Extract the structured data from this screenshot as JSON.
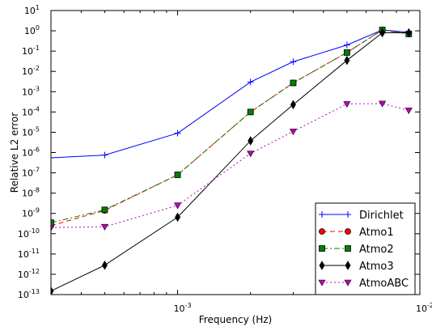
{
  "chart_data": {
    "type": "line",
    "xscale": "log",
    "yscale": "log",
    "xlabel": "Frequency (Hz)",
    "ylabel": "Relative L2 error",
    "xlim": [
      0.0003,
      0.01
    ],
    "ylim": [
      1e-13,
      10
    ],
    "legend_position": "bottom-right",
    "grid": false,
    "x_ticks": [
      {
        "value": 0.001,
        "base": "10",
        "exp": "-3"
      },
      {
        "value": 0.01,
        "base": "10",
        "exp": "-2"
      }
    ],
    "y_ticks": [
      {
        "value": 1e-13,
        "base": "10",
        "exp": "-13"
      },
      {
        "value": 1e-12,
        "base": "10",
        "exp": "-12"
      },
      {
        "value": 1e-11,
        "base": "10",
        "exp": "-11"
      },
      {
        "value": 1e-10,
        "base": "10",
        "exp": "-10"
      },
      {
        "value": 1e-09,
        "base": "10",
        "exp": "-9"
      },
      {
        "value": 1e-08,
        "base": "10",
        "exp": "-8"
      },
      {
        "value": 1e-07,
        "base": "10",
        "exp": "-7"
      },
      {
        "value": 1e-06,
        "base": "10",
        "exp": "-6"
      },
      {
        "value": 1e-05,
        "base": "10",
        "exp": "-5"
      },
      {
        "value": 0.0001,
        "base": "10",
        "exp": "-4"
      },
      {
        "value": 0.001,
        "base": "10",
        "exp": "-3"
      },
      {
        "value": 0.01,
        "base": "10",
        "exp": "-2"
      },
      {
        "value": 0.1,
        "base": "10",
        "exp": "-1"
      },
      {
        "value": 1,
        "base": "10",
        "exp": "0"
      },
      {
        "value": 10,
        "base": "10",
        "exp": "1"
      }
    ],
    "series": [
      {
        "name": "Dirichlet",
        "color": "#0000ff",
        "line": "solid",
        "marker": "plus",
        "x": [
          0.0003,
          0.0005,
          0.001,
          0.002,
          0.003,
          0.005,
          0.007,
          0.009
        ],
        "y": [
          5.5e-07,
          7.5e-07,
          9e-06,
          0.003,
          0.03,
          0.2,
          1.1,
          0.85
        ]
      },
      {
        "name": "Atmo1",
        "color": "#ff0000",
        "line": "dashed",
        "marker": "circle",
        "x": [
          0.0003,
          0.0005,
          0.001,
          0.002,
          0.003,
          0.005,
          0.007,
          0.009
        ],
        "y": [
          2.5e-10,
          1.4e-09,
          8e-08,
          0.0001,
          0.0027,
          0.085,
          1.1,
          0.7
        ]
      },
      {
        "name": "Atmo2",
        "color": "#008000",
        "line": "dashdot",
        "marker": "square",
        "x": [
          0.0003,
          0.0005,
          0.001,
          0.002,
          0.003,
          0.005,
          0.007,
          0.009
        ],
        "y": [
          3.5e-10,
          1.5e-09,
          8e-08,
          0.0001,
          0.0027,
          0.085,
          1.1,
          0.7
        ]
      },
      {
        "name": "Atmo3",
        "color": "#000000",
        "line": "solid",
        "marker": "diamond",
        "x": [
          0.0003,
          0.0005,
          0.001,
          0.002,
          0.003,
          0.005,
          0.007,
          0.009
        ],
        "y": [
          1.5e-13,
          2.8e-12,
          6.5e-10,
          3.8e-06,
          0.00023,
          0.035,
          0.8,
          0.8
        ]
      },
      {
        "name": "AtmoABC",
        "color": "#bf00bf",
        "line": "dotted",
        "marker": "triangle-down",
        "x": [
          0.0003,
          0.0005,
          0.001,
          0.002,
          0.003,
          0.005,
          0.007,
          0.009
        ],
        "y": [
          2e-10,
          2.2e-10,
          2.5e-09,
          9e-07,
          1.1e-05,
          0.00025,
          0.00026,
          0.00012
        ]
      }
    ]
  }
}
